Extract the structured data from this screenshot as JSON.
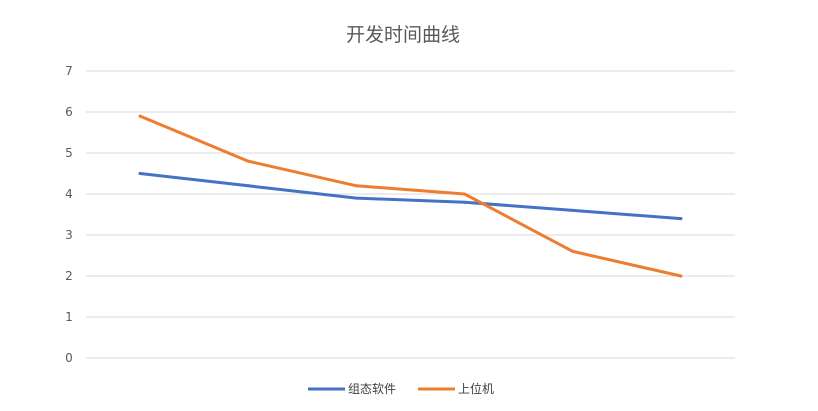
{
  "chart_data": {
    "type": "line",
    "title": "开发时间曲线",
    "xlabel": "",
    "ylabel": "",
    "ylim": [
      0,
      7
    ],
    "yticks": [
      0,
      1,
      2,
      3,
      4,
      5,
      6,
      7
    ],
    "grid": true,
    "legend_position": "bottom",
    "x": [
      1,
      2,
      3,
      4,
      5,
      6
    ],
    "series": [
      {
        "name": "组态软件",
        "color": "#4472c4",
        "values": [
          4.5,
          4.2,
          3.9,
          3.8,
          3.6,
          3.4
        ]
      },
      {
        "name": "上位机",
        "color": "#ed7d31",
        "values": [
          5.9,
          4.8,
          4.2,
          4.0,
          2.6,
          2.0
        ]
      }
    ]
  }
}
